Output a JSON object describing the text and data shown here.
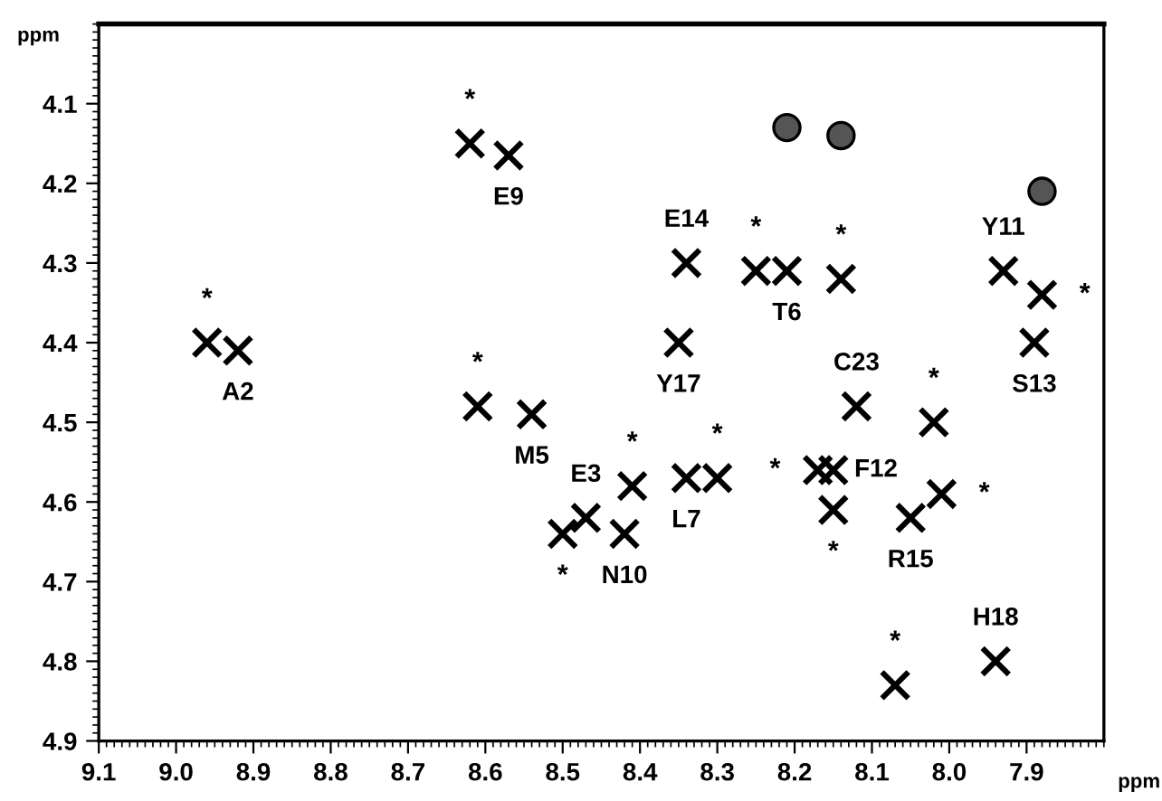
{
  "chart_data": {
    "type": "scatter",
    "xlabel": "ppm",
    "ylabel": "ppm",
    "xlim": [
      9.1,
      7.8
    ],
    "ylim": [
      4.9,
      4.0
    ],
    "xticks": [
      9.1,
      {
        "value": 9.0,
        "label": "9.0"
      },
      8.9,
      8.8,
      8.7,
      8.6,
      8.5,
      8.4,
      8.3,
      8.2,
      8.1,
      {
        "value": 8.0,
        "label": "8.0"
      },
      7.9
    ],
    "yticks": [
      4.1,
      4.2,
      4.3,
      4.4,
      4.5,
      4.6,
      4.7,
      4.8,
      4.9
    ],
    "grid": false,
    "legend": false,
    "series": [
      {
        "color": "#000000",
        "marker": "cross",
        "x": [
          8.96,
          8.92,
          8.62,
          8.57,
          8.61,
          8.54,
          8.5,
          8.47,
          8.41,
          8.42,
          8.34,
          8.3,
          8.17,
          8.15,
          8.15,
          8.12,
          8.02,
          8.05,
          8.01,
          7.94,
          8.07,
          8.34,
          8.25,
          8.21,
          8.14,
          8.35,
          7.93,
          7.88,
          7.89
        ],
        "values": [
          4.4,
          4.41,
          4.15,
          4.165,
          4.48,
          4.49,
          4.64,
          4.62,
          4.58,
          4.64,
          4.57,
          4.57,
          4.56,
          4.56,
          4.61,
          4.48,
          4.5,
          4.62,
          4.59,
          4.8,
          4.83,
          4.3,
          4.31,
          4.31,
          4.32,
          4.4,
          4.31,
          4.34,
          4.4
        ],
        "value_labels": [
          "*",
          "A2",
          "*",
          "E9",
          "*",
          "M5",
          "*",
          "E3",
          "*",
          "N10",
          "L7",
          "*",
          "*",
          "F12",
          "*",
          "C23",
          "*",
          "R15",
          "*",
          "H18",
          "*",
          "E14",
          "*",
          "T6",
          "*",
          "Y17",
          "Y11",
          "*",
          "S13"
        ]
      },
      {
        "color": "#000000",
        "marker": "circle",
        "x": [
          8.21,
          8.14,
          7.88
        ],
        "values": [
          4.13,
          4.14,
          4.21
        ]
      }
    ]
  }
}
